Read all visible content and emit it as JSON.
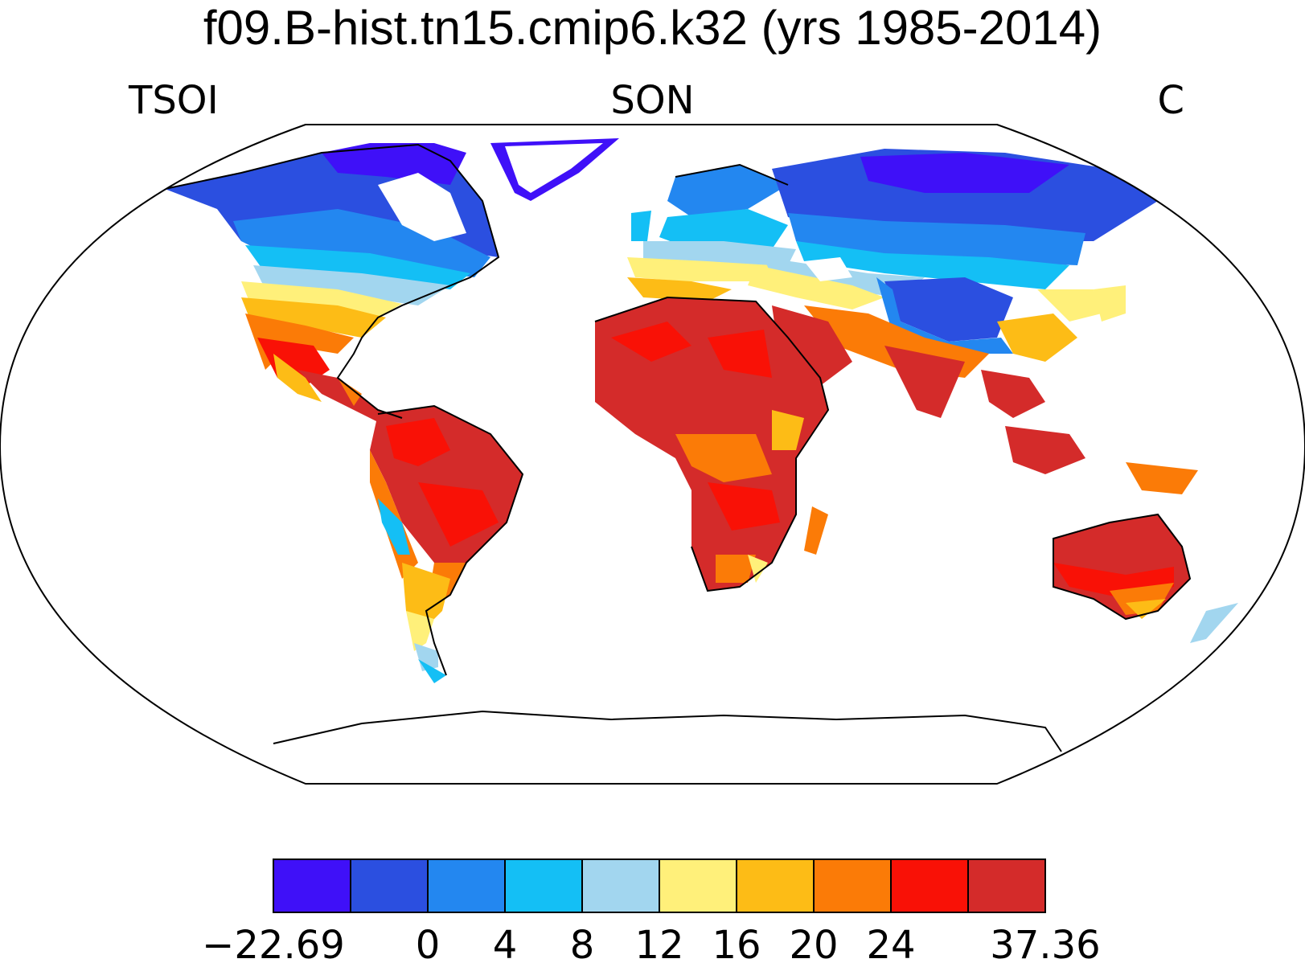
{
  "title": "f09.B-hist.tn15.cmip6.k32 (yrs 1985-2014)",
  "variable": "TSOI",
  "season": "SON",
  "units": "C",
  "colorbar": {
    "labels": [
      "−22.69",
      "0",
      "4",
      "8",
      "12",
      "16",
      "20",
      "24",
      "37.36"
    ],
    "colors": [
      "#3f10f8",
      "#2b4fe0",
      "#2387f0",
      "#14bff5",
      "#a2d6ef",
      "#fff07a",
      "#fdbc16",
      "#fb7b07",
      "#f91106",
      "#d42b2a"
    ]
  }
}
